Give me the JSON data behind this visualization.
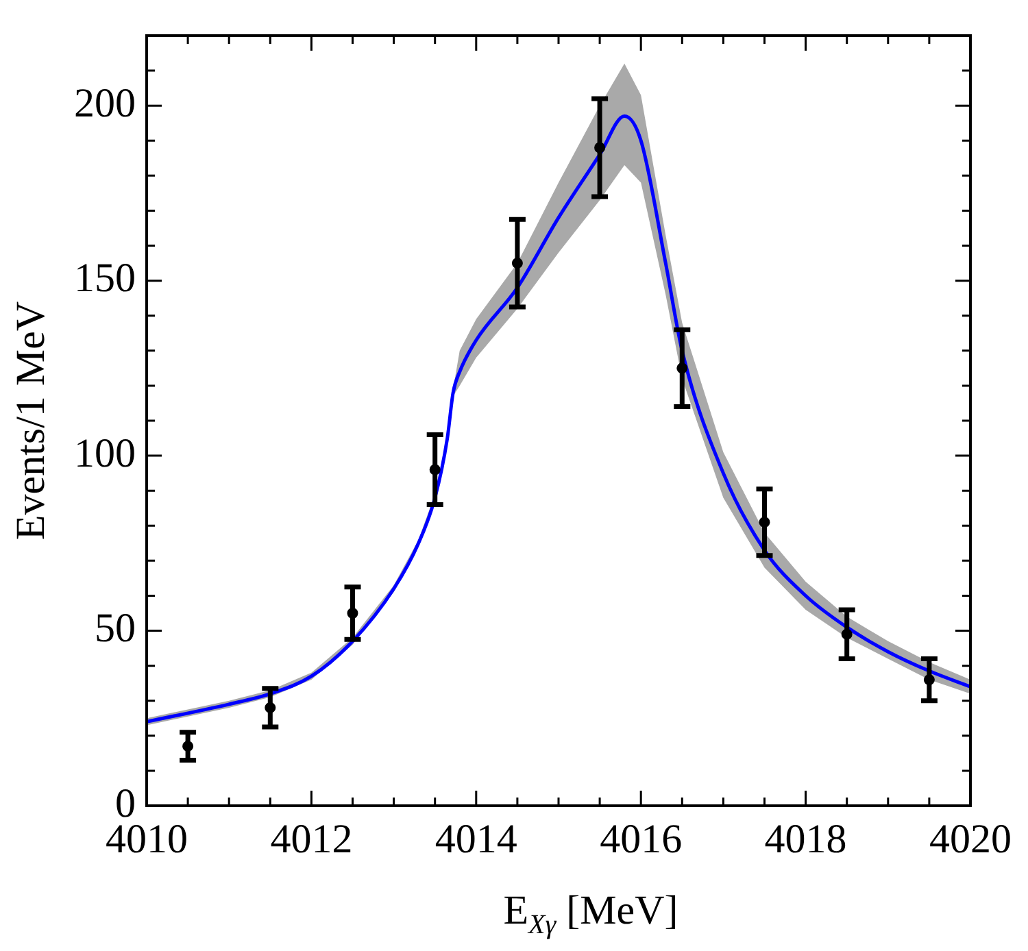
{
  "chart_data": {
    "type": "scatter",
    "xlabel": "E$_{Xγ}$ [MeV]",
    "ylabel": "Events/1 MeV",
    "xlim": [
      4010,
      4020
    ],
    "ylim": [
      0,
      220
    ],
    "xticks": [
      4010,
      {
        "value": 4010.5,
        "label": null
      },
      {
        "value": 4011,
        "label": null
      },
      {
        "value": 4011.5,
        "label": null
      },
      4012,
      {
        "value": 4012.5,
        "label": null
      },
      {
        "value": 4013,
        "label": null
      },
      {
        "value": 4013.5,
        "label": null
      },
      4014,
      {
        "value": 4014.5,
        "label": null
      },
      {
        "value": 4015,
        "label": null
      },
      {
        "value": 4015.5,
        "label": null
      },
      4016,
      {
        "value": 4016.5,
        "label": null
      },
      {
        "value": 4017,
        "label": null
      },
      {
        "value": 4017.5,
        "label": null
      },
      4018,
      {
        "value": 4018.5,
        "label": null
      },
      {
        "value": 4019,
        "label": null
      },
      {
        "value": 4019.5,
        "label": null
      },
      4020
    ],
    "yticks": [
      0,
      {
        "value": 10,
        "label": null
      },
      {
        "value": 20,
        "label": null
      },
      {
        "value": 30,
        "label": null
      },
      {
        "value": 40,
        "label": null
      },
      50,
      {
        "value": 60,
        "label": null
      },
      {
        "value": 70,
        "label": null
      },
      {
        "value": 80,
        "label": null
      },
      {
        "value": 90,
        "label": null
      },
      100,
      {
        "value": 110,
        "label": null
      },
      {
        "value": 120,
        "label": null
      },
      {
        "value": 130,
        "label": null
      },
      {
        "value": 140,
        "label": null
      },
      150,
      {
        "value": 160,
        "label": null
      },
      {
        "value": 170,
        "label": null
      },
      {
        "value": 180,
        "label": null
      },
      {
        "value": 190,
        "label": null
      },
      200,
      {
        "value": 210,
        "label": null
      }
    ],
    "grid": false,
    "legend": false,
    "series": [
      {
        "type": "line",
        "color": "#0000ff",
        "line_style": "solid",
        "marker": "none",
        "x": [
          4010,
          4011,
          4011.5,
          4012,
          4012.5,
          4013,
          4013.3,
          4013.5,
          4013.65,
          4013.72,
          4013.8,
          4014,
          4014.5,
          4015,
          4015.5,
          4015.8,
          4016,
          4016.3,
          4016.5,
          4017,
          4017.5,
          4018,
          4018.5,
          4019,
          4019.5,
          4020
        ],
        "values": [
          24,
          29,
          32,
          37,
          47,
          62,
          75,
          88,
          105,
          118,
          124,
          133,
          148,
          168,
          186,
          197,
          190,
          155,
          130,
          95,
          73,
          60,
          51,
          44,
          38.5,
          34
        ],
        "lower": [
          23,
          28,
          31,
          36,
          46,
          61,
          74,
          87,
          104,
          117,
          120,
          128,
          142,
          158,
          173,
          183,
          178,
          146,
          122,
          88,
          68,
          56,
          48,
          42,
          36,
          32
        ],
        "upper": [
          25,
          30,
          33,
          38,
          48,
          63,
          76,
          89,
          106,
          119,
          130,
          139,
          155,
          178,
          200,
          212,
          203,
          163,
          138,
          101,
          78,
          64,
          54,
          47,
          41,
          36
        ]
      },
      {
        "color": "#000000",
        "marker": "circle",
        "x": [
          4010.5,
          4011.5,
          4012.5,
          4013.5,
          4014.5,
          4015.5,
          4016.5,
          4017.5,
          4018.5,
          4019.5
        ],
        "values": [
          17,
          28,
          55,
          96,
          155,
          188,
          125,
          81,
          49,
          36
        ],
        "errors": [
          4,
          5.5,
          7.5,
          10,
          12.5,
          14,
          11,
          9.5,
          7,
          6
        ]
      }
    ]
  }
}
